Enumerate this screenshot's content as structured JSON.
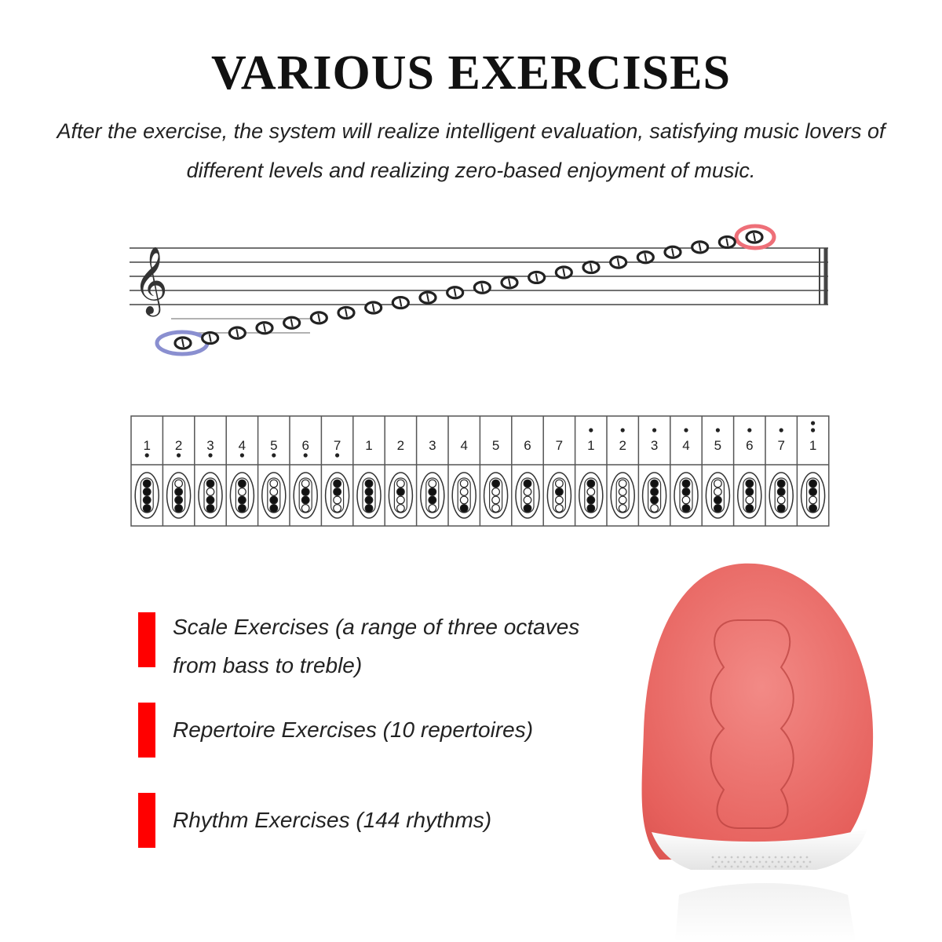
{
  "header": {
    "title": "VARIOUS EXERCISES",
    "subtitle": "After the exercise, the system will realize intelligent evaluation, satisfying music lovers of different levels and realizing zero-based enjoyment of music."
  },
  "fingering_chart": {
    "numbers": [
      "1",
      "2",
      "3",
      "4",
      "5",
      "6",
      "7",
      "1",
      "2",
      "3",
      "4",
      "5",
      "6",
      "7",
      "1",
      "2",
      "3",
      "4",
      "5",
      "6",
      "7",
      "1"
    ]
  },
  "features": [
    {
      "label": "Scale Exercises (a range of three octaves from bass to treble)"
    },
    {
      "label": "Repertoire Exercises (10 repertoires)"
    },
    {
      "label": "Rhythm Exercises (144 rhythms)"
    }
  ],
  "colors": {
    "accent": "#ff0000",
    "device_body": "#e8625f",
    "lowest_note_highlight": "#8a8fd0",
    "highest_note_highlight": "#ee6f78"
  }
}
